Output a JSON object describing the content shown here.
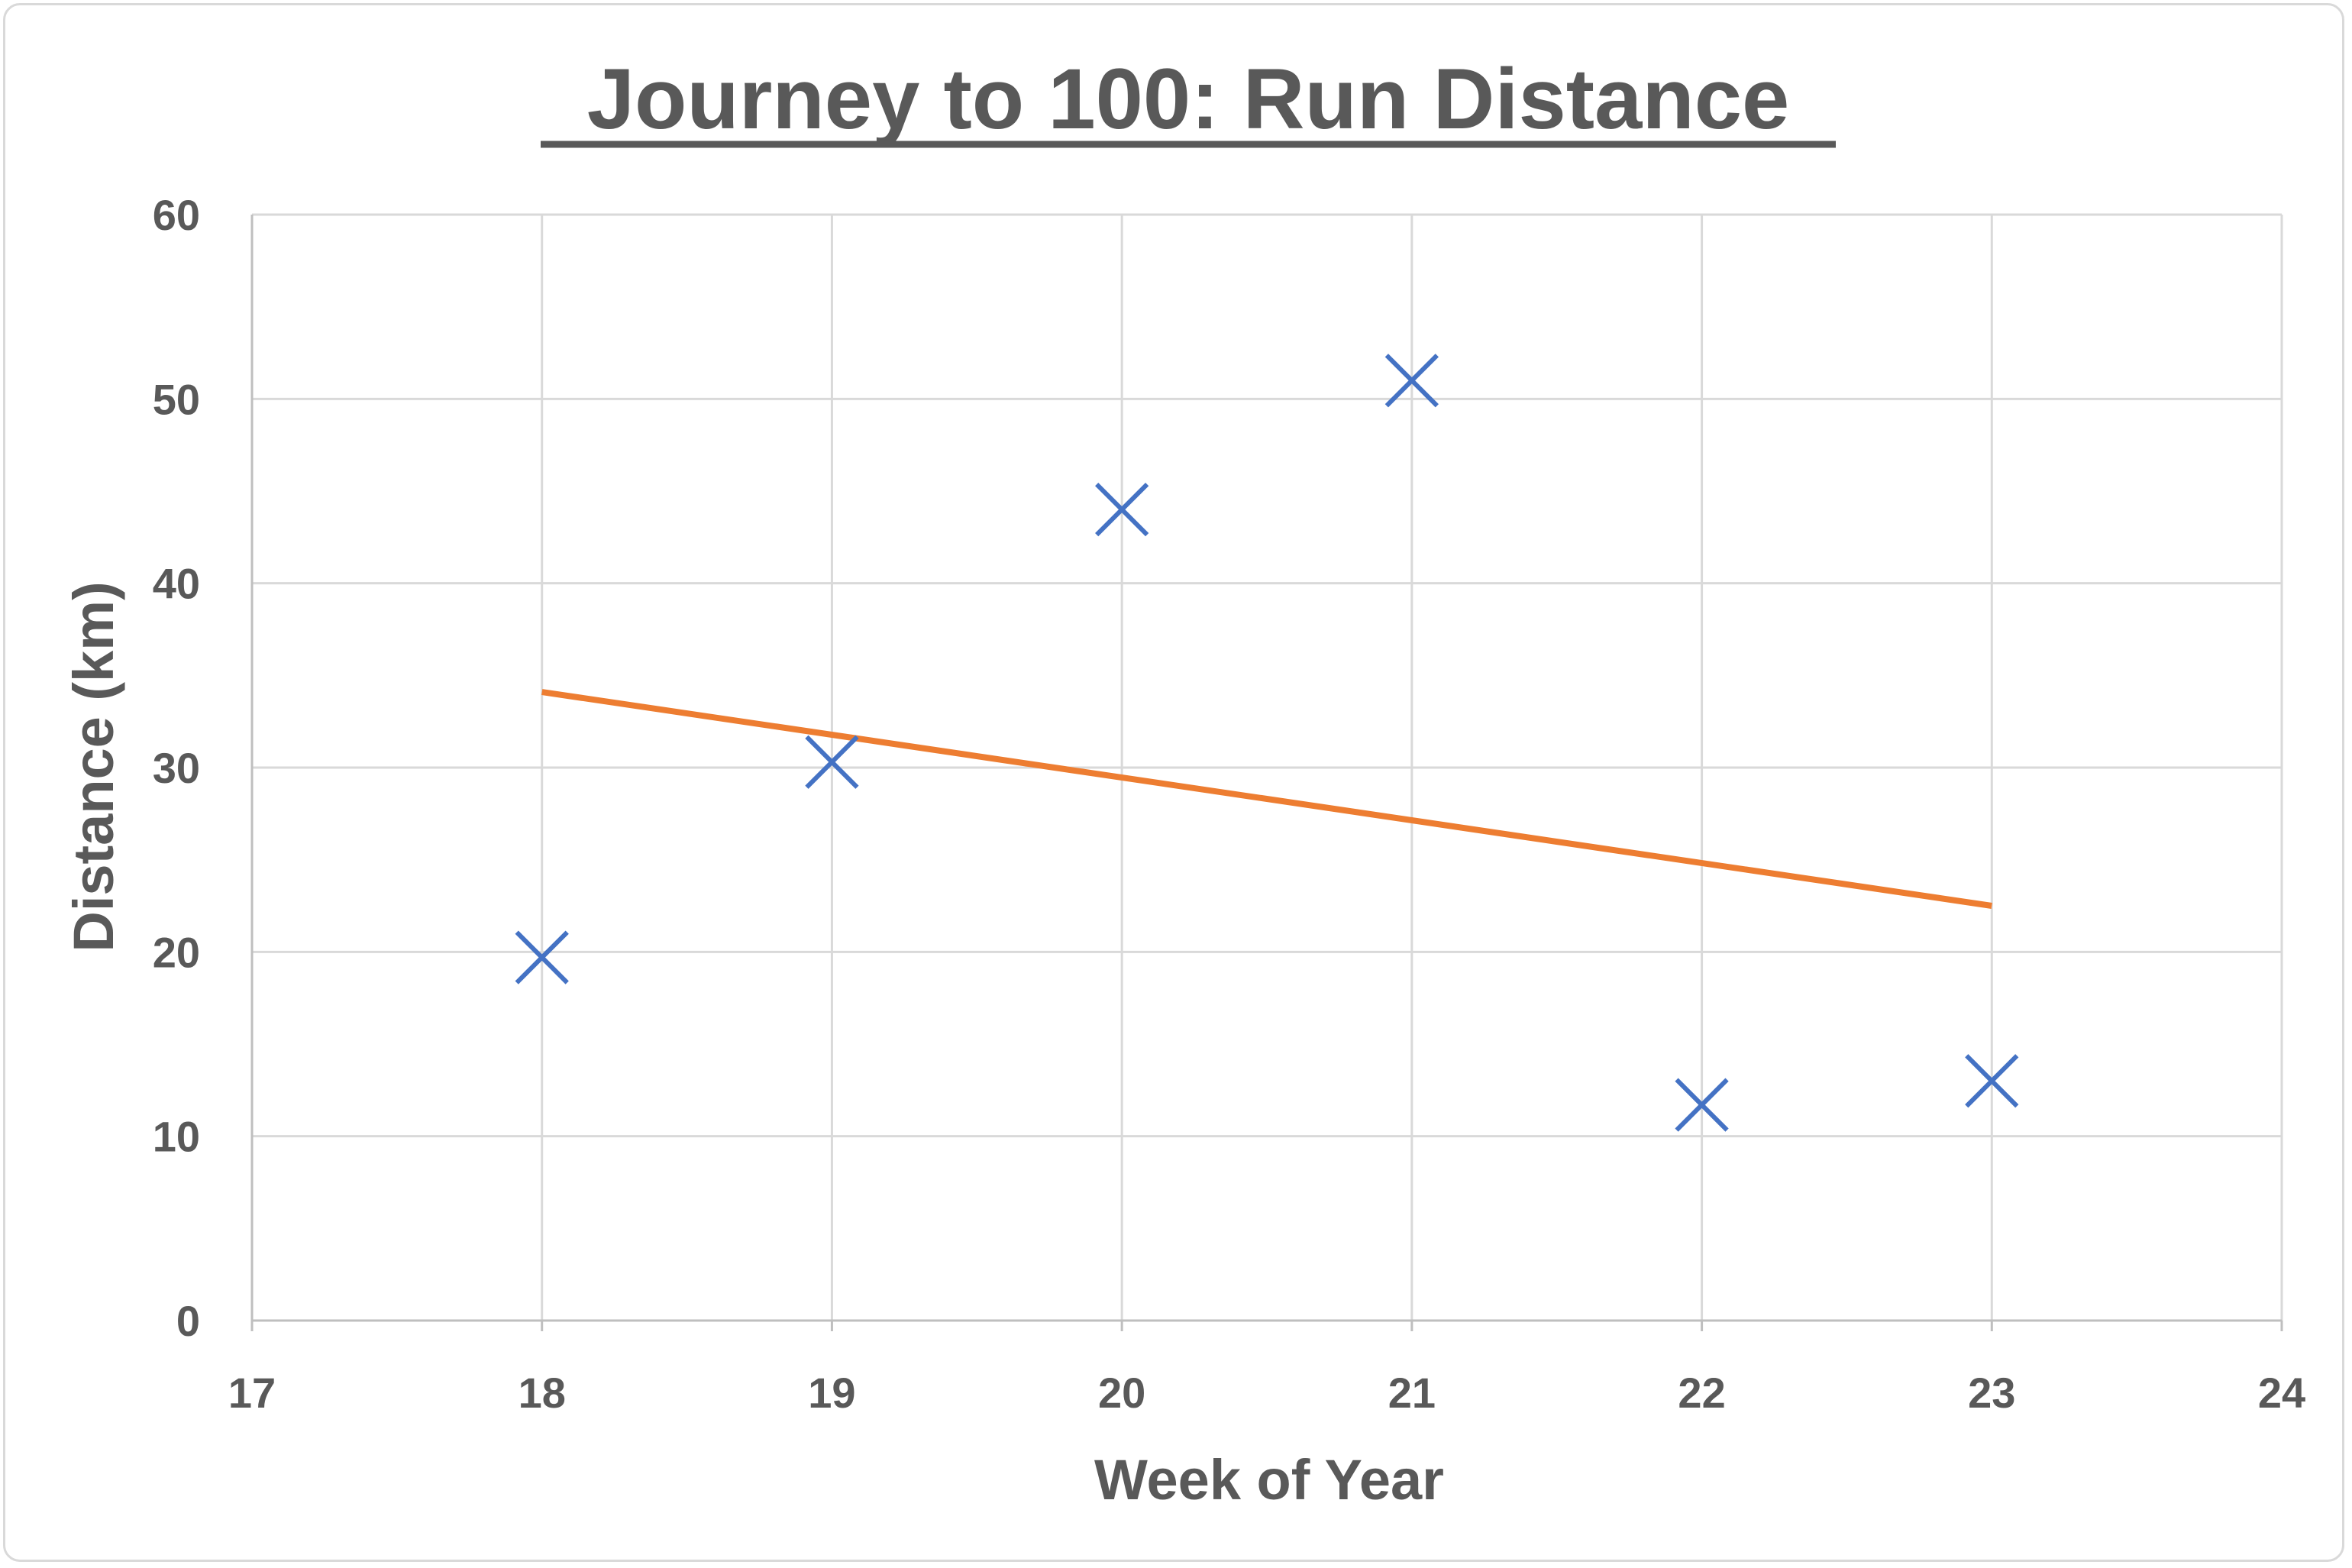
{
  "chart_data": {
    "type": "scatter",
    "title": "Journey to 100: Run Distance",
    "xlabel": "Week of Year",
    "ylabel": "Distance (km)",
    "xlim": [
      17,
      24
    ],
    "ylim": [
      0,
      60
    ],
    "x_ticks": [
      17,
      18,
      19,
      20,
      21,
      22,
      23,
      24
    ],
    "y_ticks": [
      0,
      10,
      20,
      30,
      40,
      50,
      60
    ],
    "grid": true,
    "legend": "none",
    "series": [
      {
        "marker": "x",
        "color": "#4472c4",
        "x": [
          18,
          19,
          20,
          21,
          22,
          23
        ],
        "y": [
          19.7,
          30.3,
          44.0,
          51.0,
          11.7,
          13.0
        ]
      }
    ],
    "trendline": {
      "type": "linear",
      "color": "#ed7d31",
      "x": [
        18,
        23
      ],
      "y": [
        34.1,
        22.5
      ]
    }
  }
}
